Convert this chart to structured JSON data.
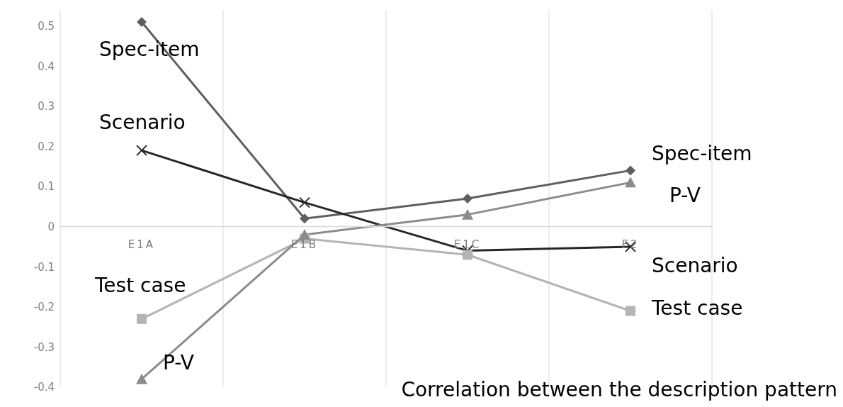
{
  "chart_data": {
    "type": "line",
    "categories": [
      "E1A",
      "E1B",
      "E1C",
      "E2"
    ],
    "ylim": [
      -0.4,
      0.54
    ],
    "yticks": [
      -0.4,
      -0.3,
      -0.2,
      -0.1,
      0,
      0.1,
      0.2,
      0.3,
      0.4,
      0.5
    ],
    "grid": "x",
    "legend": false,
    "series": [
      {
        "name": "Spec-item",
        "color": "#5f5f5f",
        "marker": "diamond",
        "values": [
          0.51,
          0.02,
          0.07,
          0.14
        ]
      },
      {
        "name": "Scenario",
        "color": "#262626",
        "marker": "cross",
        "values": [
          0.19,
          0.06,
          -0.06,
          -0.05
        ]
      },
      {
        "name": "Test case",
        "color": "#b4b4b4",
        "marker": "square",
        "values": [
          -0.23,
          -0.03,
          -0.07,
          -0.21
        ]
      },
      {
        "name": "P-V",
        "color": "#8c8c8c",
        "marker": "triangle",
        "values": [
          -0.38,
          -0.02,
          0.03,
          0.11
        ]
      }
    ],
    "annotations": [
      "Correlation between the description pattern"
    ]
  }
}
